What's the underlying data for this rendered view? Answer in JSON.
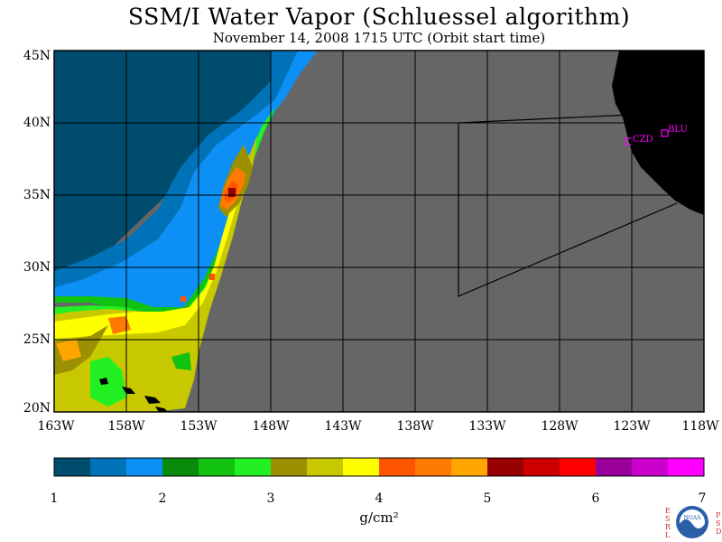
{
  "title": "SSM/I Water Vapor (Schluessel algorithm)",
  "subtitle": "November 14, 2008  1715 UTC  (Orbit start time)",
  "map": {
    "lat_labels": [
      "45N",
      "40N",
      "35N",
      "30N",
      "25N",
      "20N"
    ],
    "lon_labels": [
      "163W",
      "158W",
      "153W",
      "148W",
      "143W",
      "138W",
      "133W",
      "128W",
      "123W",
      "118W"
    ],
    "lat_range": [
      20,
      45
    ],
    "lon_range": [
      -163,
      -118
    ],
    "no_data_color": "#666666",
    "land_color": "#000000",
    "stations": [
      {
        "id": "CZD",
        "lat": 38.6,
        "lon": -123.2
      },
      {
        "id": "BLU",
        "lat": 39.2,
        "lon": -120.9
      }
    ],
    "station_color": "#ff00ff"
  },
  "colorbar": {
    "tick_labels": [
      "1",
      "2",
      "3",
      "4",
      "5",
      "6",
      "7"
    ],
    "unit": "g/cm²",
    "colors": [
      "#004c6e",
      "#0072b8",
      "#0d90f5",
      "#0a8a0a",
      "#11c211",
      "#22f022",
      "#9a9000",
      "#c8c800",
      "#ffff00",
      "#ff5500",
      "#ff7a00",
      "#ffa500",
      "#960000",
      "#cc0000",
      "#ff0000",
      "#990099",
      "#cc00cc",
      "#ff00ff"
    ]
  },
  "logo": {
    "left_letters": "ESRL",
    "right_letters": "PSD",
    "badge": "NOAA"
  }
}
